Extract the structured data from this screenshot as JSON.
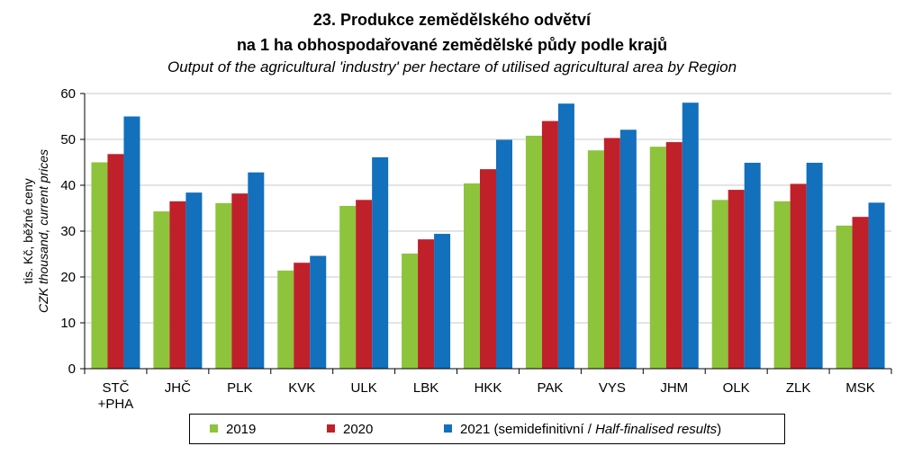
{
  "title": {
    "line1": "23. Produkce zemědělského odvětví",
    "line2": "na 1 ha obhospodařované zemědělské půdy podle krajů",
    "line3": "Output of the agricultural 'industry' per hectare of utilised agricultural area by Region"
  },
  "ylabel": {
    "cz": "tis. Kč, běžné ceny",
    "en": "CZK thousand, current prices"
  },
  "legend": {
    "s2019": "2019",
    "s2020": "2020",
    "s2021_prefix": "2021 (semidefinitivní / ",
    "s2021_italic": "Half-finalised results",
    "s2021_suffix": ")"
  },
  "colors": {
    "s2019": "#8dc43c",
    "s2020": "#c0202a",
    "s2021": "#1270bd",
    "grid": "#c8c8c8"
  },
  "chart_data": {
    "type": "bar",
    "title": "23. Produkce zemědělského odvětví na 1 ha obhospodařované zemědělské půdy podle krajů",
    "subtitle": "Output of the agricultural 'industry' per hectare of utilised agricultural area by Region",
    "ylabel": "tis. Kč, běžné ceny / CZK thousand, current prices",
    "xlabel": "",
    "ylim": [
      0,
      60
    ],
    "yticks": [
      0,
      10,
      20,
      30,
      40,
      50,
      60
    ],
    "grid": true,
    "legend_position": "bottom",
    "categories": [
      "STČ\n+PHA",
      "JHČ",
      "PLK",
      "KVK",
      "ULK",
      "LBK",
      "HKK",
      "PAK",
      "VYS",
      "JHM",
      "OLK",
      "ZLK",
      "MSK"
    ],
    "series": [
      {
        "name": "2019",
        "values": [
          45.0,
          34.3,
          36.1,
          21.4,
          35.5,
          25.1,
          40.4,
          50.8,
          47.6,
          48.4,
          36.8,
          36.5,
          31.2
        ]
      },
      {
        "name": "2020",
        "values": [
          46.8,
          36.5,
          38.2,
          23.1,
          36.8,
          28.2,
          43.5,
          54.0,
          50.3,
          49.4,
          39.0,
          40.3,
          33.1
        ]
      },
      {
        "name": "2021 (semidefinitivní / Half-finalised results)",
        "values": [
          55.0,
          38.4,
          42.8,
          24.6,
          46.1,
          29.4,
          49.9,
          57.8,
          52.1,
          58.0,
          44.9,
          44.9,
          36.2
        ]
      }
    ]
  }
}
